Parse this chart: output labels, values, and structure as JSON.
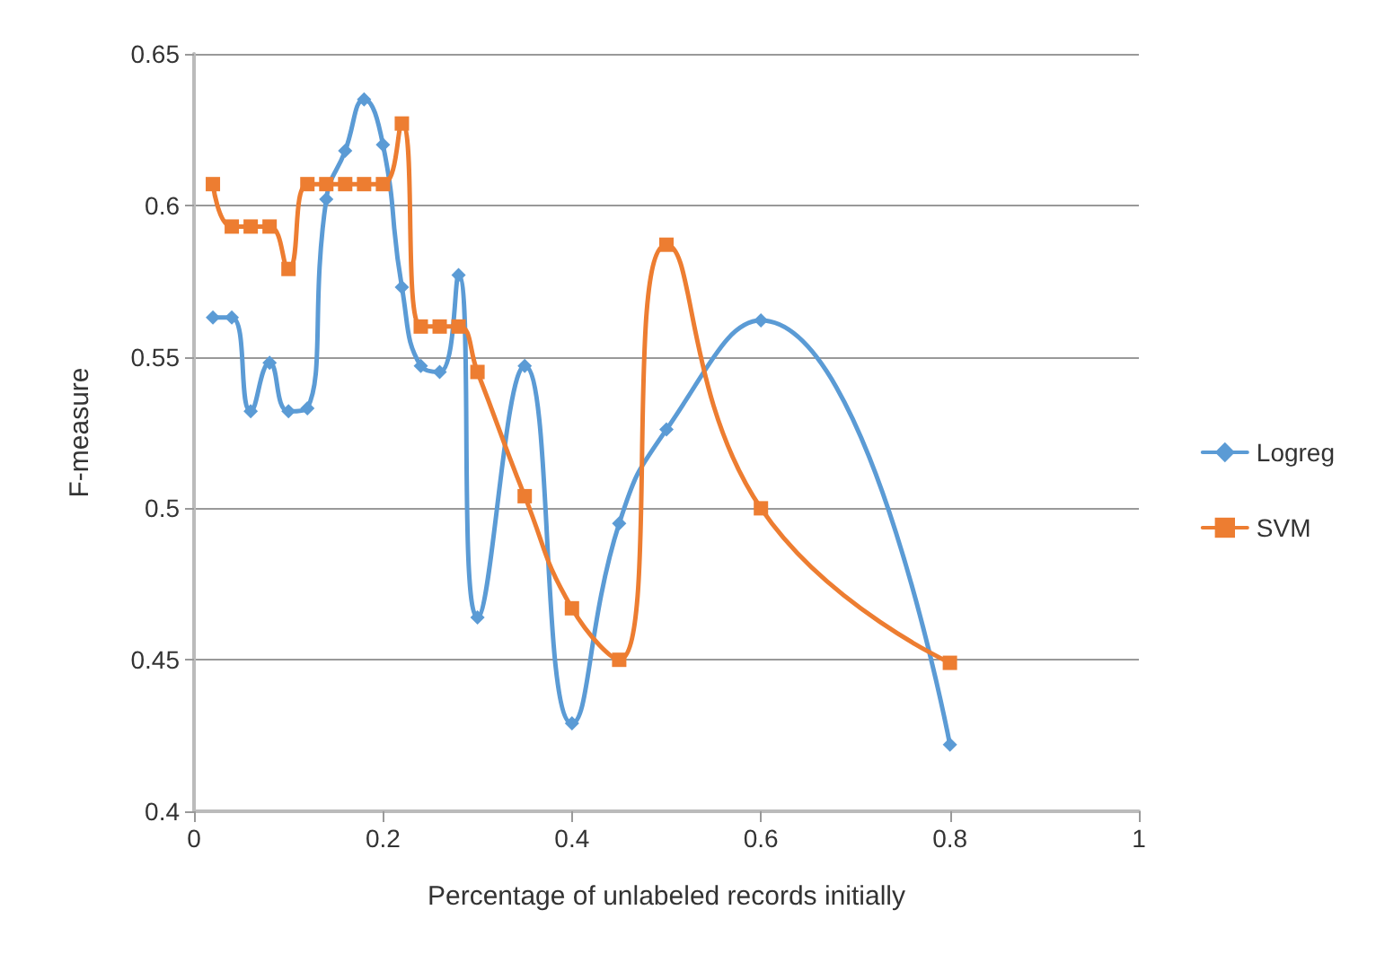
{
  "chart_data": {
    "type": "line",
    "xlabel": "Percentage of unlabeled records initially",
    "ylabel": "F-measure",
    "xlim": [
      0,
      1
    ],
    "xticks": [
      0,
      0.2,
      0.4,
      0.6,
      0.8,
      1
    ],
    "ylim": [
      0.4,
      0.65
    ],
    "yticks": [
      0.4,
      0.45,
      0.5,
      0.55,
      0.6,
      0.65
    ],
    "grid": "y",
    "legend": "right",
    "line_style": "solid",
    "x": [
      0.02,
      0.04,
      0.06,
      0.08,
      0.1,
      0.12,
      0.14,
      0.16,
      0.18,
      0.2,
      0.22,
      0.24,
      0.26,
      0.28,
      0.3,
      0.35,
      0.4,
      0.45,
      0.5,
      0.6,
      0.8
    ],
    "series": [
      {
        "name": "Logreg",
        "color": "#5b9bd5",
        "marker": "diamond",
        "values": [
          0.563,
          0.563,
          0.532,
          0.548,
          0.532,
          0.533,
          0.602,
          0.618,
          0.635,
          0.62,
          0.573,
          0.547,
          0.545,
          0.577,
          0.464,
          0.547,
          0.429,
          0.495,
          0.526,
          0.562,
          0.422
        ]
      },
      {
        "name": "SVM",
        "color": "#ed7d31",
        "marker": "square",
        "values": [
          0.607,
          0.593,
          0.593,
          0.593,
          0.579,
          0.607,
          0.607,
          0.607,
          0.607,
          0.607,
          0.627,
          0.56,
          0.56,
          0.56,
          0.545,
          0.504,
          0.467,
          0.45,
          0.587,
          0.5,
          0.449
        ]
      }
    ]
  }
}
